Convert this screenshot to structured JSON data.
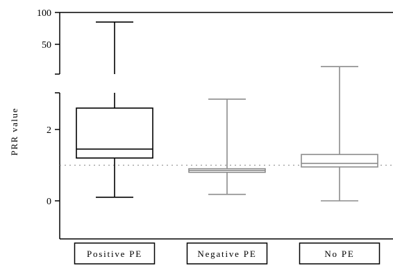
{
  "chart_data": {
    "type": "boxplot",
    "title": "",
    "ylabel": "PRR value",
    "xlabel": "",
    "y_axis_broken": true,
    "y_lower_segment": {
      "range": [
        -0.8,
        3.0
      ],
      "ticks": [
        0,
        2
      ],
      "tick_labels": [
        "0",
        "2"
      ]
    },
    "y_upper_segment": {
      "range": [
        0,
        100
      ],
      "ticks": [
        50,
        100
      ],
      "tick_labels": [
        "50",
        "100"
      ]
    },
    "reference_line": {
      "y": 1,
      "style": "dotted"
    },
    "grid": false,
    "categories": [
      "Positive PE",
      "Negative PE",
      "No PE"
    ],
    "boxes": [
      {
        "name": "Positive PE",
        "min": 0.1,
        "q1": 1.2,
        "median": 1.45,
        "q3": 2.6,
        "max": 85,
        "color": "#000000"
      },
      {
        "name": "Negative PE",
        "min": 0.18,
        "q1": 0.8,
        "median": 0.85,
        "q3": 0.9,
        "max": 2.85,
        "color": "#8c8c8c"
      },
      {
        "name": "No PE",
        "min": 0.0,
        "q1": 0.95,
        "median": 1.05,
        "q3": 1.3,
        "max": 15,
        "color": "#8c8c8c"
      }
    ]
  }
}
